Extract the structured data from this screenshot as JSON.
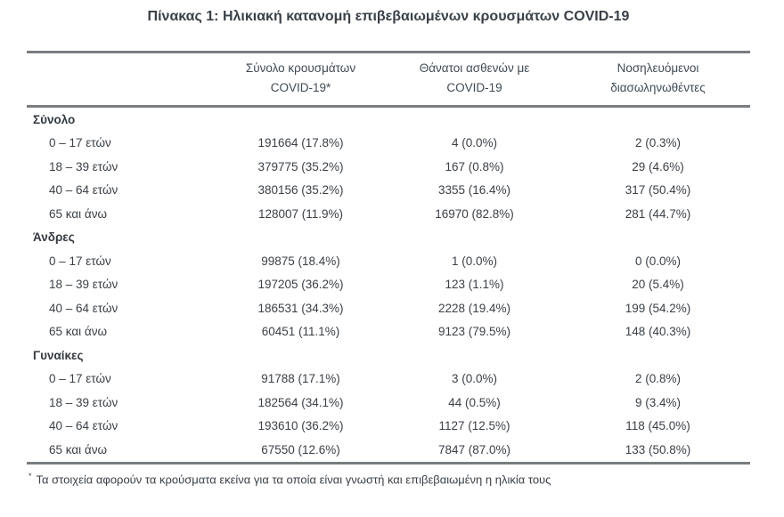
{
  "title": "Πίνακας 1: Ηλικιακή κατανομή επιβεβαιωμένων κρουσμάτων COVID-19",
  "columns": {
    "cases": {
      "line1": "Σύνολο κρουσμάτων",
      "line2": "COVID-19*"
    },
    "deaths": {
      "line1": "Θάνατοι ασθενών με",
      "line2": "COVID-19"
    },
    "intubated": {
      "line1": "Νοσηλευόμενοι",
      "line2": "διασωληνωθέντες"
    }
  },
  "chart_data": {
    "type": "table",
    "title": "Πίνακας 1: Ηλικιακή κατανομή επιβεβαιωμένων κρουσμάτων COVID-19",
    "column_headers": [
      "Σύνολο κρουσμάτων COVID-19*",
      "Θάνατοι ασθενών με COVID-19",
      "Νοσηλευόμενοι διασωληνωθέντες"
    ],
    "sections": [
      {
        "label": "Σύνολο",
        "rows": [
          {
            "age": "0 – 17 ετών",
            "cases": "191664 (17.8%)",
            "deaths": "4 (0.0%)",
            "intubated": "2 (0.3%)"
          },
          {
            "age": "18 – 39 ετών",
            "cases": "379775 (35.2%)",
            "deaths": "167 (0.8%)",
            "intubated": "29 (4.6%)"
          },
          {
            "age": "40 – 64 ετών",
            "cases": "380156 (35.2%)",
            "deaths": "3355 (16.4%)",
            "intubated": "317 (50.4%)"
          },
          {
            "age": "65 και άνω",
            "cases": "128007 (11.9%)",
            "deaths": "16970 (82.8%)",
            "intubated": "281 (44.7%)"
          }
        ]
      },
      {
        "label": "Άνδρες",
        "rows": [
          {
            "age": "0 – 17 ετών",
            "cases": "99875 (18.4%)",
            "deaths": "1 (0.0%)",
            "intubated": "0 (0.0%)"
          },
          {
            "age": "18 – 39 ετών",
            "cases": "197205 (36.2%)",
            "deaths": "123 (1.1%)",
            "intubated": "20 (5.4%)"
          },
          {
            "age": "40 – 64 ετών",
            "cases": "186531 (34.3%)",
            "deaths": "2228 (19.4%)",
            "intubated": "199 (54.2%)"
          },
          {
            "age": "65 και άνω",
            "cases": "60451 (11.1%)",
            "deaths": "9123 (79.5%)",
            "intubated": "148 (40.3%)"
          }
        ]
      },
      {
        "label": "Γυναίκες",
        "rows": [
          {
            "age": "0 – 17 ετών",
            "cases": "91788 (17.1%)",
            "deaths": "3 (0.0%)",
            "intubated": "2 (0.8%)"
          },
          {
            "age": "18 – 39 ετών",
            "cases": "182564 (34.1%)",
            "deaths": "44 (0.5%)",
            "intubated": "9 (3.4%)"
          },
          {
            "age": "40 – 64 ετών",
            "cases": "193610 (36.2%)",
            "deaths": "1127 (12.5%)",
            "intubated": "118 (45.0%)"
          },
          {
            "age": "65 και άνω",
            "cases": "67550 (12.6%)",
            "deaths": "7847 (87.0%)",
            "intubated": "133 (50.8%)"
          }
        ]
      }
    ]
  },
  "footnote": {
    "marker": "*",
    "text": "Τα στοιχεία αφορούν τα κρούσματα εκείνα για τα οποία είναι γνωστή και επιβεβαιωμένη η ηλικία τους"
  },
  "colors": {
    "text": "#3b4147",
    "rule": "#7a7d80",
    "background": "#ffffff"
  }
}
